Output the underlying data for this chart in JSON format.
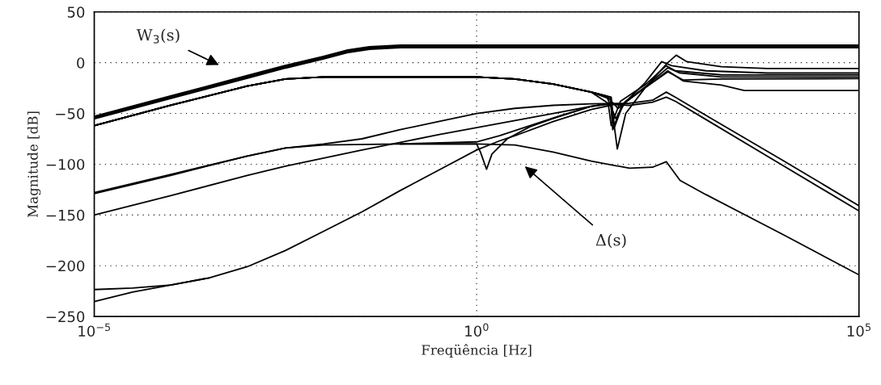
{
  "chart_data": {
    "type": "line",
    "xlabel": "Freqüência [Hz]",
    "ylabel": "Magnitude [dB]",
    "log": "x",
    "xlim": [
      1e-05,
      100000
    ],
    "xticks": [
      {
        "value": 1e-05,
        "label": "10$^{−5}$"
      },
      {
        "value": 1,
        "label": "10$^{0}$"
      },
      {
        "value": 100000,
        "label": "10$^{5}$"
      }
    ],
    "ylim": [
      -250,
      50
    ],
    "yticks": [
      -250,
      -200,
      -150,
      -100,
      -50,
      0,
      50
    ],
    "grid": true,
    "line_style": "solid",
    "annotations": [
      "W$_{3}$(s)",
      "Δ(s)"
    ],
    "series": [
      {
        "color": "#000000",
        "x": [
          1e-05,
          0.0001,
          0.001,
          0.003162,
          0.01,
          0.01995,
          0.03981,
          0.1,
          100000
        ],
        "values": [
          -54,
          -34,
          -14,
          -4,
          5,
          11,
          14.5,
          16,
          16
        ]
      },
      {
        "color": "#000000",
        "x": [
          1e-05,
          0.0001,
          0.001,
          0.003162,
          0.01,
          1,
          3.162,
          10,
          31.62,
          56.23,
          69.18,
          89.13,
          158.5,
          316.2,
          407.4,
          562.3,
          1585,
          6310,
          100000
        ],
        "values": [
          -62,
          -42,
          -23,
          -16,
          -14,
          -14,
          -16,
          -21,
          -29,
          -34,
          -85,
          -50,
          -25,
          0,
          7.4,
          1,
          -4,
          -5.7,
          -5.7
        ]
      },
      {
        "color": "#000000",
        "x": [
          1e-05,
          0.0001,
          0.001,
          0.003162,
          0.01,
          1,
          3.162,
          10,
          31.62,
          56.23,
          60.26,
          79.43,
          158.5,
          263,
          354.8,
          1000,
          6310,
          100000
        ],
        "values": [
          -62,
          -42,
          -23,
          -16,
          -14,
          -14,
          -16,
          -21,
          -29,
          -36,
          -66,
          -42,
          -20,
          1,
          -3,
          -8,
          -10.2,
          -10.2
        ]
      },
      {
        "color": "#000000",
        "x": [
          1e-05,
          0.0001,
          0.001,
          0.003162,
          0.01,
          1,
          3.162,
          10,
          31.62,
          52.48,
          57.54,
          75.86,
          158.5,
          302,
          398.1,
          1585,
          100000
        ],
        "values": [
          -62,
          -42,
          -23,
          -16,
          -14,
          -14,
          -16,
          -21,
          -29,
          -40,
          -62,
          -38,
          -22,
          -3,
          -8,
          -12,
          -12.1
        ]
      },
      {
        "color": "#000000",
        "x": [
          1e-05,
          0.0001,
          0.001,
          0.003162,
          0.01,
          1,
          3.162,
          10,
          31.62,
          57.54,
          63.1,
          83.18,
          158.5,
          316.2,
          446.7,
          1585,
          100000
        ],
        "values": [
          -62,
          -42,
          -23,
          -16,
          -14,
          -14,
          -16,
          -21,
          -29,
          -34,
          -64,
          -40,
          -24,
          -5,
          -10,
          -14,
          -14.1
        ]
      },
      {
        "color": "#000000",
        "x": [
          1e-05,
          0.0001,
          0.001,
          0.003162,
          0.01,
          1,
          3.162,
          10,
          31.62,
          50.12,
          70.79,
          100,
          316.2,
          501.2,
          1585,
          3162,
          100000
        ],
        "values": [
          -62,
          -42,
          -23,
          -16,
          -14,
          -14,
          -16,
          -21,
          -29,
          -33,
          -45,
          -36,
          -8,
          -18,
          -22,
          -27.4,
          -27.4
        ]
      },
      {
        "color": "#000000",
        "x": [
          1e-05,
          0.0001,
          0.001,
          0.003162,
          0.01,
          1,
          3.162,
          10,
          31.62,
          50.12,
          66.07,
          89.13,
          316.2,
          501.2,
          1585,
          100000
        ],
        "values": [
          -62,
          -42,
          -23,
          -16,
          -14,
          -14,
          -16,
          -21,
          -29,
          -33,
          -55,
          -38,
          -9,
          -17,
          -16,
          -15.7
        ]
      },
      {
        "color": "#000000",
        "x": [
          1e-05,
          0.0001,
          0.001,
          0.003162,
          0.01,
          0.1,
          1,
          3.162,
          10,
          31.62,
          100,
          199.5,
          302,
          457.1,
          1000,
          10000,
          100000
        ],
        "values": [
          -129,
          -111,
          -92,
          -84,
          -81,
          -80,
          -80,
          -81,
          -88,
          -97,
          -104,
          -103,
          -97.5,
          -116,
          -130,
          -169,
          -209
        ]
      },
      {
        "color": "#000000",
        "x": [
          1e-05,
          0.0001,
          0.001,
          0.003162,
          0.01,
          0.03162,
          0.1,
          0.3162,
          1,
          3.162,
          10,
          31.62,
          100,
          199.5,
          302,
          398.1,
          1000,
          10000,
          100000
        ],
        "values": [
          -128,
          -110,
          -92,
          -84,
          -80,
          -75,
          -66,
          -58,
          -50,
          -45,
          -42,
          -40.5,
          -40,
          -37,
          -29,
          -34,
          -52,
          -96,
          -141
        ]
      },
      {
        "color": "#000000",
        "x": [
          1e-05,
          0.0001,
          0.001,
          0.003162,
          0.03162,
          0.3162,
          1,
          3.162,
          10,
          31.62,
          50.12,
          100,
          199.5,
          302,
          398.1,
          1000,
          10000,
          100000
        ],
        "values": [
          -150,
          -131,
          -111,
          -102,
          -86,
          -71,
          -64,
          -57,
          -50,
          -43,
          -41,
          -42,
          -39,
          -34,
          -38,
          -56,
          -101,
          -146
        ]
      },
      {
        "color": "#000000",
        "x": [
          0.1,
          1,
          1.122,
          1.349,
          1.585,
          2.512,
          5.012,
          10,
          31.62,
          56.23
        ],
        "values": [
          -80,
          -80,
          -88,
          -105,
          -90,
          -75,
          -63,
          -55,
          -43,
          -40
        ]
      },
      {
        "color": "#000000",
        "x": [
          0.1,
          1,
          1.995,
          5.012,
          12.59,
          31.62
        ],
        "values": [
          -80,
          -78,
          -72,
          -62,
          -52,
          -43
        ]
      },
      {
        "color": "#000000",
        "x": [
          1e-05,
          3.162e-05,
          0.0001,
          0.0003162,
          0.001,
          0.003162,
          0.01,
          0.03162,
          0.1,
          0.3162,
          1,
          1.995,
          3.162,
          10,
          31.62,
          56.23
        ],
        "values": [
          -223.5,
          -222,
          -219,
          -212,
          -201,
          -185,
          -166,
          -147,
          -126,
          -106,
          -86,
          -77,
          -72,
          -58,
          -46,
          -42
        ]
      },
      {
        "color": "#000000",
        "x": [
          1e-05,
          3.162e-05,
          0.0001,
          0.0003162
        ],
        "values": [
          -235.4,
          -226,
          -219,
          -212
        ]
      }
    ]
  }
}
